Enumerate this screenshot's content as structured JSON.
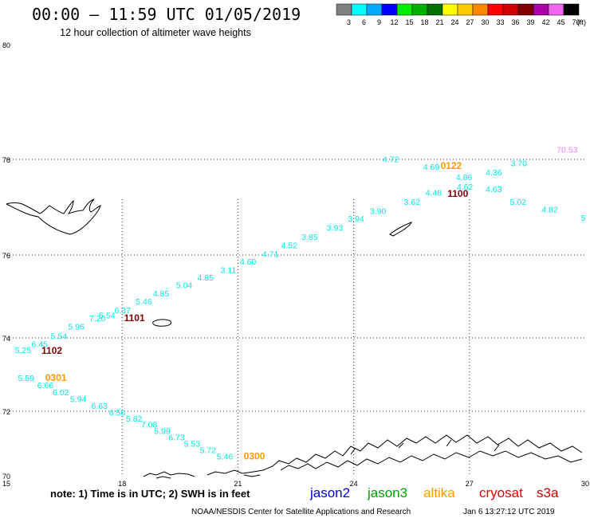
{
  "header": {
    "title": "00:00 – 11:59 UTC 01/05/2019",
    "subtitle": "12 hour collection of altimeter wave heights"
  },
  "legend": {
    "unit": "(ft)",
    "entries": [
      {
        "label": "3",
        "color": "#808080"
      },
      {
        "label": "6",
        "color": "#00ffff"
      },
      {
        "label": "9",
        "color": "#00aaff"
      },
      {
        "label": "12",
        "color": "#0000ff"
      },
      {
        "label": "15",
        "color": "#00ee00"
      },
      {
        "label": "18",
        "color": "#00b000"
      },
      {
        "label": "21",
        "color": "#007000"
      },
      {
        "label": "24",
        "color": "#ffff00"
      },
      {
        "label": "27",
        "color": "#ffcc00"
      },
      {
        "label": "30",
        "color": "#ff8800"
      },
      {
        "label": "33",
        "color": "#ff0000"
      },
      {
        "label": "36",
        "color": "#cc0000"
      },
      {
        "label": "39",
        "color": "#800000"
      },
      {
        "label": "42",
        "color": "#aa00aa"
      },
      {
        "label": "45",
        "color": "#ee66ee"
      },
      {
        "label": "70",
        "color": "#000000"
      }
    ]
  },
  "map": {
    "lon_range": [
      15,
      30
    ],
    "lat_range": [
      70,
      80
    ],
    "lon_ticks": [
      "15",
      "18",
      "21",
      "24",
      "27",
      "30"
    ],
    "lat_ticks": [
      "70",
      "72",
      "74",
      "76",
      "78",
      "80"
    ],
    "grid": "dotted",
    "colors": {
      "cyan": "#00e8e8",
      "orange": "#ff9900",
      "darkred": "#800000",
      "pink": "#ee82ee"
    }
  },
  "observations": [
    {
      "text": "4.72",
      "lon": 24.75,
      "lat": 77.94,
      "color": "cyan"
    },
    {
      "text": "4.69",
      "lon": 25.8,
      "lat": 77.78,
      "color": "cyan"
    },
    {
      "text": "0122",
      "lon": 26.25,
      "lat": 77.8,
      "color": "orange"
    },
    {
      "text": "3.70",
      "lon": 28.07,
      "lat": 77.86,
      "color": "cyan"
    },
    {
      "text": "70.53",
      "lon": 29.26,
      "lat": 78.12,
      "color": "pink"
    },
    {
      "text": "4.86",
      "lon": 26.65,
      "lat": 77.57,
      "color": "cyan"
    },
    {
      "text": "4.36",
      "lon": 27.42,
      "lat": 77.67,
      "color": "cyan"
    },
    {
      "text": "4.62",
      "lon": 26.67,
      "lat": 77.37,
      "color": "cyan"
    },
    {
      "text": "4.63",
      "lon": 27.42,
      "lat": 77.32,
      "color": "cyan"
    },
    {
      "text": "1100",
      "lon": 26.43,
      "lat": 77.22,
      "color": "darkred"
    },
    {
      "text": "4.48",
      "lon": 25.86,
      "lat": 77.24,
      "color": "cyan"
    },
    {
      "text": "5.02",
      "lon": 28.05,
      "lat": 77.05,
      "color": "cyan"
    },
    {
      "text": "3.62",
      "lon": 25.3,
      "lat": 77.05,
      "color": "cyan"
    },
    {
      "text": "4.82",
      "lon": 28.87,
      "lat": 76.89,
      "color": "cyan"
    },
    {
      "text": "5",
      "lon": 29.89,
      "lat": 76.72,
      "color": "cyan"
    },
    {
      "text": "3.90",
      "lon": 24.42,
      "lat": 76.86,
      "color": "cyan"
    },
    {
      "text": "3.94",
      "lon": 23.85,
      "lat": 76.7,
      "color": "cyan"
    },
    {
      "text": "3.93",
      "lon": 23.3,
      "lat": 76.51,
      "color": "cyan"
    },
    {
      "text": "3.85",
      "lon": 22.65,
      "lat": 76.32,
      "color": "cyan"
    },
    {
      "text": "4.52",
      "lon": 22.12,
      "lat": 76.14,
      "color": "cyan"
    },
    {
      "text": "4.71",
      "lon": 21.63,
      "lat": 75.95,
      "color": "cyan"
    },
    {
      "text": "4.60",
      "lon": 21.05,
      "lat": 75.77,
      "color": "cyan"
    },
    {
      "text": "3.11",
      "lon": 20.55,
      "lat": 75.57,
      "color": "cyan"
    },
    {
      "text": "4.85",
      "lon": 19.95,
      "lat": 75.38,
      "color": "cyan"
    },
    {
      "text": "5.04",
      "lon": 19.4,
      "lat": 75.2,
      "color": "cyan"
    },
    {
      "text": "4.85",
      "lon": 18.8,
      "lat": 75.0,
      "color": "cyan"
    },
    {
      "text": "5.46",
      "lon": 18.35,
      "lat": 74.81,
      "color": "cyan"
    },
    {
      "text": "6.37",
      "lon": 17.8,
      "lat": 74.6,
      "color": "cyan"
    },
    {
      "text": "5.54",
      "lon": 17.4,
      "lat": 74.47,
      "color": "cyan"
    },
    {
      "text": "7.20",
      "lon": 17.15,
      "lat": 74.4,
      "color": "cyan"
    },
    {
      "text": "1101",
      "lon": 18.05,
      "lat": 74.4,
      "color": "darkred"
    },
    {
      "text": "5.96",
      "lon": 16.6,
      "lat": 74.2,
      "color": "cyan"
    },
    {
      "text": "5.54",
      "lon": 16.15,
      "lat": 73.97,
      "color": "cyan"
    },
    {
      "text": "6.45",
      "lon": 15.65,
      "lat": 73.75,
      "color": "cyan"
    },
    {
      "text": "1102",
      "lon": 15.91,
      "lat": 73.57,
      "color": "darkred"
    },
    {
      "text": "5.25",
      "lon": 15.22,
      "lat": 73.59,
      "color": "cyan"
    },
    {
      "text": "5.59",
      "lon": 15.3,
      "lat": 72.83,
      "color": "cyan"
    },
    {
      "text": "0301",
      "lon": 16.01,
      "lat": 72.83,
      "color": "orange"
    },
    {
      "text": "6.66",
      "lon": 15.8,
      "lat": 72.63,
      "color": "cyan"
    },
    {
      "text": "6.02",
      "lon": 16.2,
      "lat": 72.44,
      "color": "cyan"
    },
    {
      "text": "5.94",
      "lon": 16.65,
      "lat": 72.25,
      "color": "cyan"
    },
    {
      "text": "6.63",
      "lon": 17.2,
      "lat": 72.06,
      "color": "cyan"
    },
    {
      "text": "6.56",
      "lon": 17.66,
      "lat": 71.87,
      "color": "cyan"
    },
    {
      "text": "5.82",
      "lon": 18.1,
      "lat": 71.68,
      "color": "cyan"
    },
    {
      "text": "7.08",
      "lon": 18.49,
      "lat": 71.5,
      "color": "cyan"
    },
    {
      "text": "5.99",
      "lon": 18.83,
      "lat": 71.31,
      "color": "cyan"
    },
    {
      "text": "6.73",
      "lon": 19.2,
      "lat": 71.11,
      "color": "cyan"
    },
    {
      "text": "5.53",
      "lon": 19.6,
      "lat": 70.92,
      "color": "cyan"
    },
    {
      "text": "5.72",
      "lon": 20.01,
      "lat": 70.72,
      "color": "cyan"
    },
    {
      "text": "5.46",
      "lon": 20.45,
      "lat": 70.52,
      "color": "cyan"
    },
    {
      "text": "0300",
      "lon": 21.15,
      "lat": 70.53,
      "color": "orange"
    }
  ],
  "footer": {
    "note": "note: 1) Time is in UTC; 2) SWH is in feet",
    "satellites": [
      {
        "name": "jason2",
        "color": "#0000dd"
      },
      {
        "name": "jason3",
        "color": "#00a000"
      },
      {
        "name": "altika",
        "color": "#ff9900"
      },
      {
        "name": "cryosat",
        "color": "#dd0000"
      },
      {
        "name": "s3a",
        "color": "#cc0000"
      }
    ],
    "credit": "NOAA/NESDIS Center for Satellite Applications and Research",
    "timestamp": "Jan  6 13:27:12 UTC 2019"
  }
}
